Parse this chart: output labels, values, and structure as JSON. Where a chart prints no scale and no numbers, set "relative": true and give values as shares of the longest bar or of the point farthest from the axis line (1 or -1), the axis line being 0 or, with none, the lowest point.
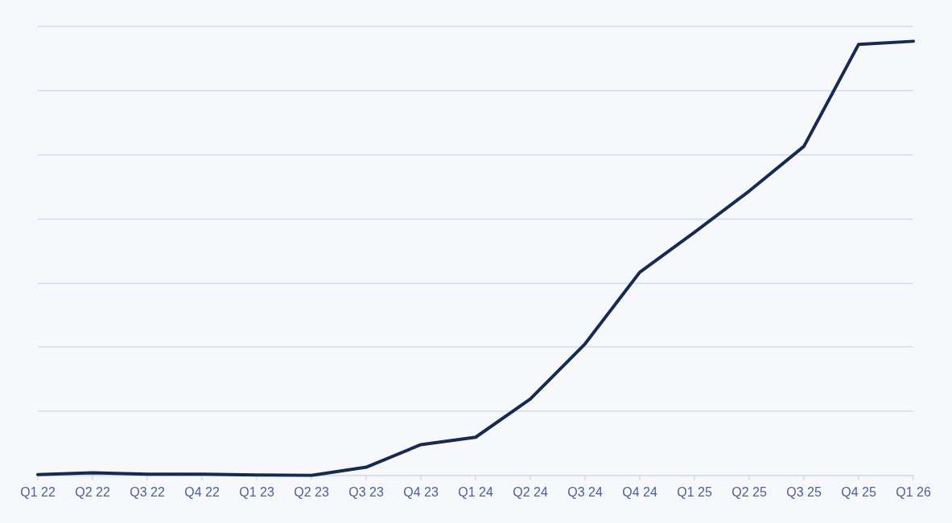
{
  "chart_data": {
    "type": "line",
    "relative": true,
    "grid": "y",
    "marker": "none",
    "categories": [
      "Q1 22",
      "Q2 22",
      "Q3 22",
      "Q4 22",
      "Q1 23",
      "Q2 23",
      "Q3 23",
      "Q4 23",
      "Q1 24",
      "Q2 24",
      "Q3 24",
      "Q4 24",
      "Q1 25",
      "Q2 25",
      "Q3 25",
      "Q4 25",
      "Q1 26"
    ],
    "series": [
      {
        "color": "#172a52",
        "values": [
          0.002,
          0.006,
          0.003,
          0.003,
          0.001,
          0,
          0.019,
          0.071,
          0.088,
          0.176,
          0.303,
          0.468,
          0.56,
          0.655,
          0.758,
          0.993,
          1
        ]
      }
    ]
  }
}
